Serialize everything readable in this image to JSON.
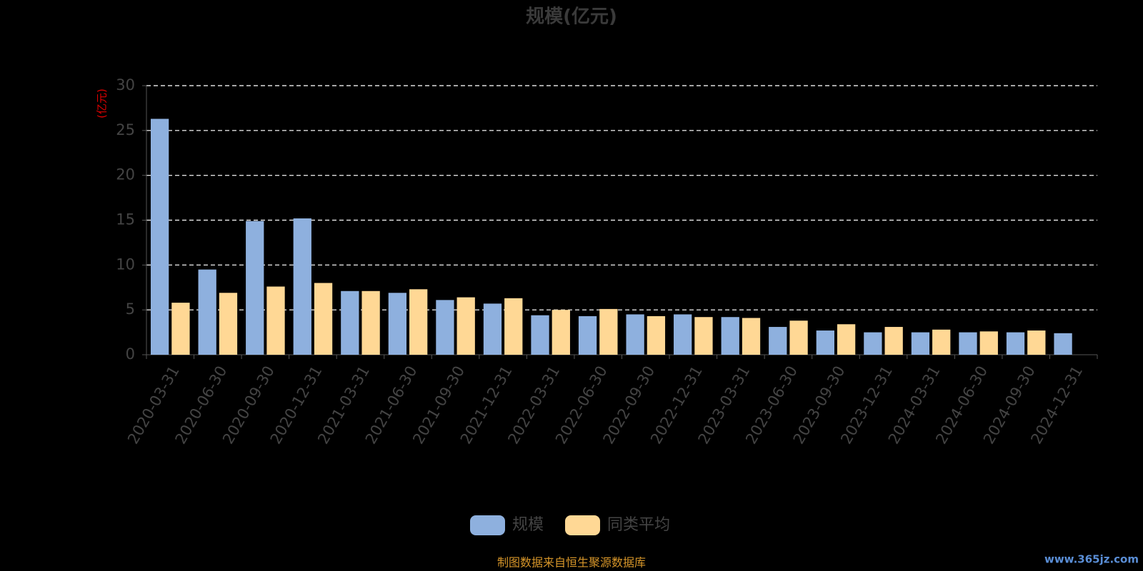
{
  "chart_data": {
    "type": "bar",
    "title": "规模(亿元)",
    "y_label": "(亿元)",
    "categories": [
      "2020-03-31",
      "2020-06-30",
      "2020-09-30",
      "2020-12-31",
      "2021-03-31",
      "2021-06-30",
      "2021-09-30",
      "2021-12-31",
      "2022-03-31",
      "2022-06-30",
      "2022-09-30",
      "2022-12-31",
      "2023-03-31",
      "2023-06-30",
      "2023-09-30",
      "2023-12-31",
      "2024-03-31",
      "2024-06-30",
      "2024-09-30",
      "2024-12-31"
    ],
    "series": [
      {
        "name": "规模",
        "color": "#8eb0de",
        "values": [
          26.3,
          9.5,
          14.9,
          15.2,
          7.1,
          6.9,
          6.1,
          5.7,
          4.4,
          4.3,
          4.5,
          4.5,
          4.2,
          3.1,
          2.7,
          2.5,
          2.5,
          2.5,
          2.5,
          2.4
        ]
      },
      {
        "name": "同类平均",
        "color": "#ffd895",
        "values": [
          5.8,
          6.9,
          7.6,
          8.0,
          7.1,
          7.3,
          6.4,
          6.3,
          5.0,
          5.1,
          4.3,
          4.2,
          4.1,
          3.8,
          3.4,
          3.1,
          2.8,
          2.6,
          2.7,
          null
        ]
      }
    ],
    "ylim": [
      0,
      30
    ],
    "yticks": [
      0,
      5,
      10,
      15,
      20,
      25,
      30
    ],
    "grid": true,
    "footer": "制图数据来自恒生聚源数据库",
    "watermark": "www.365jz.com"
  }
}
